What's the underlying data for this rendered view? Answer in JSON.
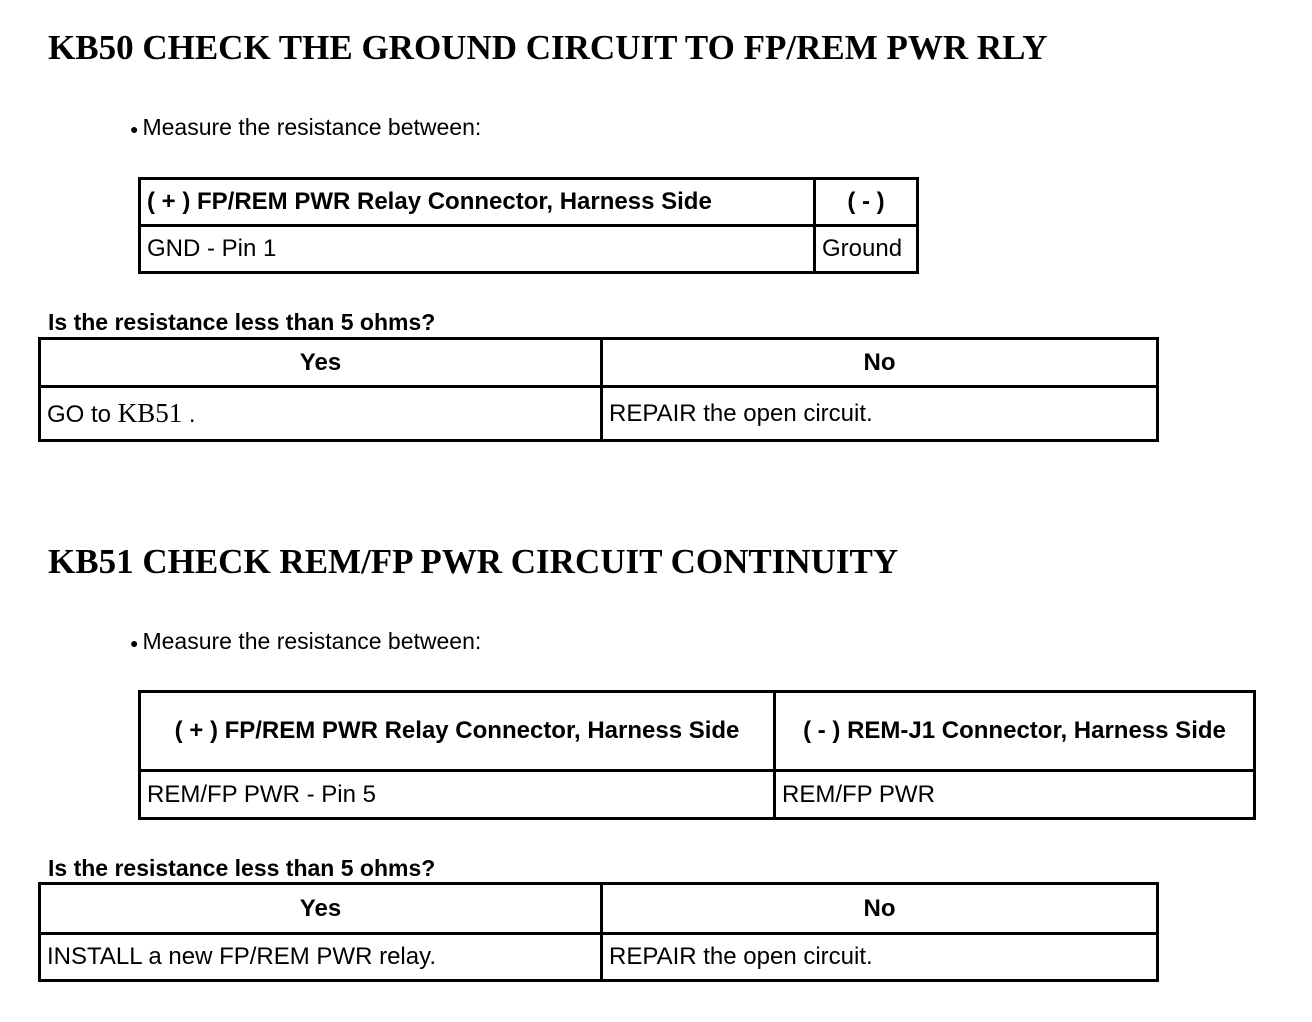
{
  "sections": [
    {
      "title": "KB50 CHECK THE GROUND CIRCUIT TO FP/REM PWR RLY",
      "instruction": "Measure the resistance between:",
      "measure_table": {
        "headers": [
          "( + ) FP/REM PWR Relay Connector, Harness Side",
          "( - )"
        ],
        "row": [
          "GND - Pin 1",
          "Ground"
        ]
      },
      "question": "Is the resistance less than 5 ohms?",
      "result_table": {
        "headers": [
          "Yes",
          "No"
        ],
        "yes_prefix": "GO to",
        "yes_link": "KB51",
        "yes_suffix": ".",
        "no": "REPAIR the open circuit."
      }
    },
    {
      "title": "KB51 CHECK REM/FP PWR CIRCUIT CONTINUITY",
      "instruction": "Measure the resistance between:",
      "measure_table": {
        "headers": [
          "( + ) FP/REM PWR Relay Connector, Harness Side",
          "( - ) REM-J1 Connector, Harness Side"
        ],
        "row": [
          "REM/FP PWR - Pin 5",
          "REM/FP PWR"
        ]
      },
      "question": "Is the resistance less than 5 ohms?",
      "result_table": {
        "headers": [
          "Yes",
          "No"
        ],
        "yes": "INSTALL a new FP/REM PWR relay.",
        "no": "REPAIR the open circuit."
      }
    }
  ]
}
